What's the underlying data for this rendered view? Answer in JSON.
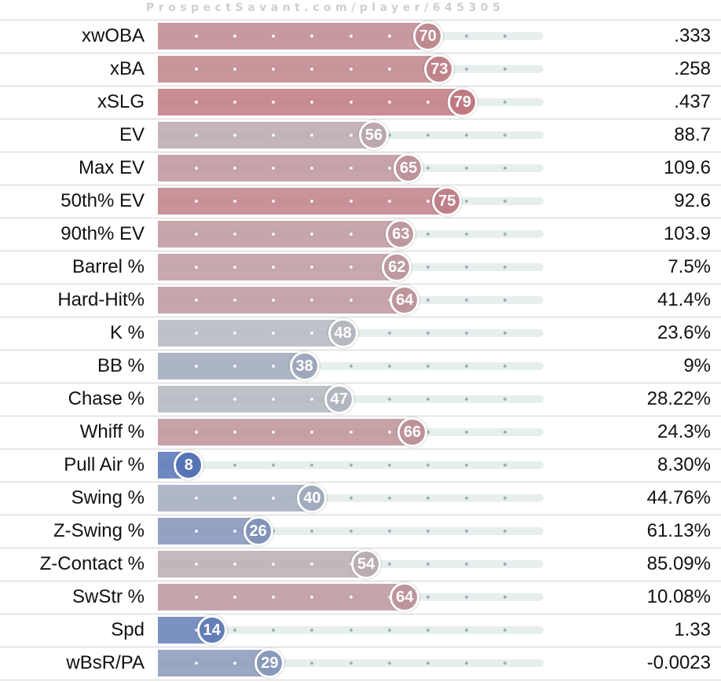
{
  "watermark": "ProspectSavant.com/player/645305",
  "chart_data": {
    "type": "bar",
    "scale": "percentile",
    "xlim": [
      0,
      100
    ],
    "rows": [
      {
        "metric": "xwOBA",
        "percentile": 70,
        "value": ".333"
      },
      {
        "metric": "xBA",
        "percentile": 73,
        "value": ".258"
      },
      {
        "metric": "xSLG",
        "percentile": 79,
        "value": ".437"
      },
      {
        "metric": "EV",
        "percentile": 56,
        "value": "88.7"
      },
      {
        "metric": "Max EV",
        "percentile": 65,
        "value": "109.6"
      },
      {
        "metric": "50th% EV",
        "percentile": 75,
        "value": "92.6"
      },
      {
        "metric": "90th% EV",
        "percentile": 63,
        "value": "103.9"
      },
      {
        "metric": "Barrel %",
        "percentile": 62,
        "value": "7.5%"
      },
      {
        "metric": "Hard-Hit%",
        "percentile": 64,
        "value": "41.4%"
      },
      {
        "metric": "K %",
        "percentile": 48,
        "value": "23.6%"
      },
      {
        "metric": "BB %",
        "percentile": 38,
        "value": "9%"
      },
      {
        "metric": "Chase %",
        "percentile": 47,
        "value": "28.22%"
      },
      {
        "metric": "Whiff %",
        "percentile": 66,
        "value": "24.3%"
      },
      {
        "metric": "Pull Air %",
        "percentile": 8,
        "value": "8.30%"
      },
      {
        "metric": "Swing %",
        "percentile": 40,
        "value": "44.76%"
      },
      {
        "metric": "Z-Swing %",
        "percentile": 26,
        "value": "61.13%"
      },
      {
        "metric": "Z-Contact %",
        "percentile": 54,
        "value": "85.09%"
      },
      {
        "metric": "SwStr %",
        "percentile": 64,
        "value": "10.08%"
      },
      {
        "metric": "Spd",
        "percentile": 14,
        "value": "1.33"
      },
      {
        "metric": "wBsR/PA",
        "percentile": 29,
        "value": "-0.0023"
      }
    ]
  },
  "colors": {
    "low": "#3d62b3",
    "mid": "#b9bbbf",
    "high": "#c4555d",
    "track": "#e6efee",
    "gridline": "#d2d2d2",
    "tick": "#9fb0b0"
  }
}
